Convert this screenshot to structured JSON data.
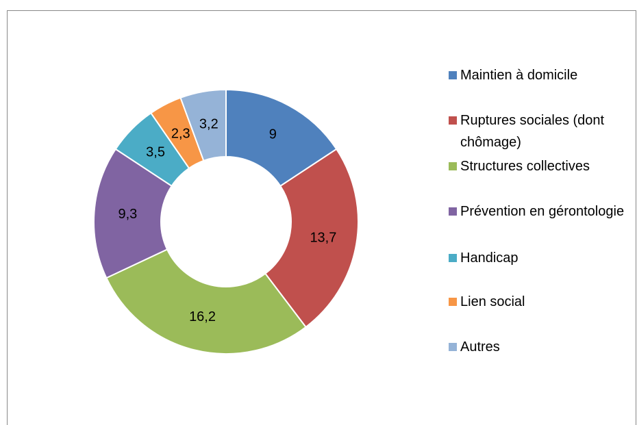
{
  "chart_data": {
    "type": "donut",
    "categories": [
      "Maintien à domicile",
      "Ruptures sociales (dont chômage)",
      "Structures collectives",
      "Prévention en gérontologie",
      "Handicap",
      "Lien social",
      "Autres"
    ],
    "values": [
      9,
      13.7,
      16.2,
      9.3,
      3.5,
      2.3,
      3.2
    ],
    "value_labels": [
      "9",
      "13,7",
      "16,2",
      "9,3",
      "3,5",
      "2,3",
      "3,2"
    ],
    "colors": [
      "#4f81bd",
      "#c0504d",
      "#9bbb59",
      "#8064a2",
      "#4bacc6",
      "#f79646",
      "#95b3d7"
    ],
    "legend": "right"
  }
}
